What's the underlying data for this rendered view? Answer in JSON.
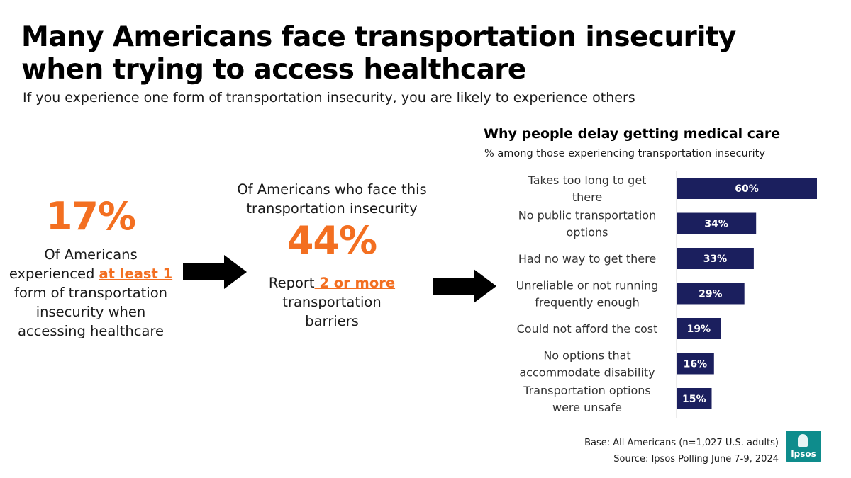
{
  "title": "Many Americans face transportation insecurity when trying to access healthcare",
  "subtitle": "If you experience one form of transportation insecurity, you are likely to experience others",
  "stat1": {
    "value": "17%",
    "line1": "Of Americans",
    "line2_pre": "experienced ",
    "line2_hl": "at least 1",
    "line3": "form of transportation",
    "line4": "insecurity when",
    "line5": "accessing healthcare"
  },
  "stat2": {
    "intro1": "Of Americans who face this",
    "intro2": "transportation insecurity",
    "value": "44%",
    "line1_pre": "Report",
    "line1_hl": " 2 or more",
    "line2": "transportation",
    "line3": "barriers"
  },
  "colors": {
    "accent": "#f36f21",
    "bar": "#1b1f5e",
    "logo": "#0e8c8c"
  },
  "chart_data": {
    "type": "bar",
    "orientation": "horizontal",
    "title": "Why people delay getting medical care",
    "subtitle": "% among those experiencing transportation insecurity",
    "categories": [
      [
        "Takes too long to get",
        "there"
      ],
      [
        "No public transportation",
        "options"
      ],
      [
        "Had no way to get there"
      ],
      [
        "Unreliable or not running",
        "frequently enough"
      ],
      [
        "Could not afford the cost"
      ],
      [
        "No options that",
        "accommodate disability"
      ],
      [
        "Transportation options",
        "were unsafe"
      ]
    ],
    "values": [
      60,
      34,
      33,
      29,
      19,
      16,
      15
    ],
    "value_labels": [
      "60%",
      "34%",
      "33%",
      "29%",
      "19%",
      "16%",
      "15%"
    ],
    "xlim": [
      0,
      60
    ],
    "grid": false,
    "legend": "none"
  },
  "footer": {
    "base": "Base: All Americans (n=1,027 U.S. adults)",
    "source": "Source: Ipsos Polling  June 7-9, 2024"
  },
  "logo_text": "Ipsos"
}
